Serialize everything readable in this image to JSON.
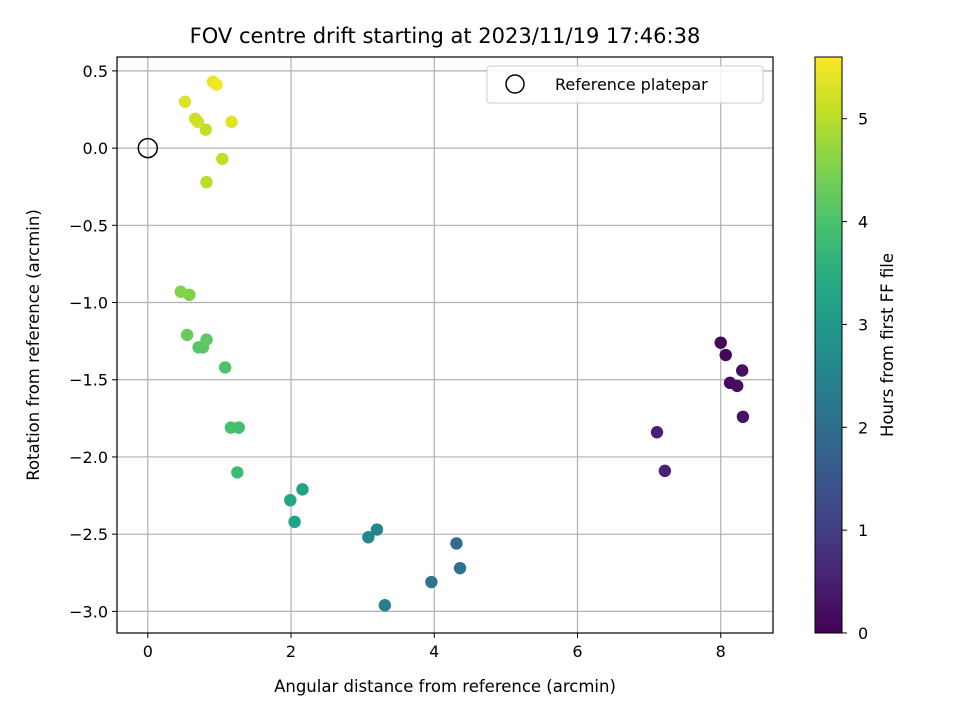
{
  "chart_data": {
    "type": "scatter",
    "title": "FOV centre drift starting at 2023/11/19 17:46:38",
    "xlabel": "Angular distance from reference (arcmin)",
    "ylabel": "Rotation from reference (arcmin)",
    "xlim": [
      -0.43,
      8.73
    ],
    "ylim": [
      -3.14,
      0.59
    ],
    "x_ticks": [
      0,
      2,
      4,
      6,
      8
    ],
    "y_ticks": [
      0.5,
      0.0,
      -0.5,
      -1.0,
      -1.5,
      -2.0,
      -2.5,
      -3.0
    ],
    "x_tick_labels": [
      "0",
      "2",
      "4",
      "6",
      "8"
    ],
    "y_tick_labels": [
      "0.5",
      "0.0",
      "−0.5",
      "−1.0",
      "−1.5",
      "−2.0",
      "−2.5",
      "−3.0"
    ],
    "grid": true,
    "legend": {
      "position": "top-right",
      "entries": [
        {
          "label": "Reference platepar",
          "marker": "open-circle"
        }
      ]
    },
    "reference_point": {
      "x": 0.0,
      "y": 0.0
    },
    "colorbar": {
      "label": "Hours from first FF file",
      "colormap": "viridis",
      "range": [
        0,
        5.6
      ],
      "ticks": [
        0,
        1,
        2,
        3,
        4,
        5
      ],
      "tick_labels": [
        "0",
        "1",
        "2",
        "3",
        "4",
        "5"
      ]
    },
    "points": [
      {
        "x": 8.0,
        "y": -1.26,
        "hours": 0.05
      },
      {
        "x": 8.07,
        "y": -1.34,
        "hours": 0.1
      },
      {
        "x": 8.13,
        "y": -1.52,
        "hours": 0.15
      },
      {
        "x": 8.23,
        "y": -1.54,
        "hours": 0.2
      },
      {
        "x": 8.3,
        "y": -1.44,
        "hours": 0.25
      },
      {
        "x": 8.31,
        "y": -1.74,
        "hours": 0.3
      },
      {
        "x": 7.11,
        "y": -1.84,
        "hours": 0.5
      },
      {
        "x": 7.22,
        "y": -2.09,
        "hours": 0.55
      },
      {
        "x": 4.31,
        "y": -2.56,
        "hours": 2.0
      },
      {
        "x": 4.36,
        "y": -2.72,
        "hours": 2.1
      },
      {
        "x": 3.96,
        "y": -2.81,
        "hours": 2.2
      },
      {
        "x": 3.31,
        "y": -2.96,
        "hours": 2.4
      },
      {
        "x": 3.2,
        "y": -2.47,
        "hours": 2.5
      },
      {
        "x": 3.08,
        "y": -2.52,
        "hours": 2.55
      },
      {
        "x": 2.16,
        "y": -2.21,
        "hours": 3.2
      },
      {
        "x": 2.05,
        "y": -2.42,
        "hours": 3.25
      },
      {
        "x": 1.99,
        "y": -2.28,
        "hours": 3.3
      },
      {
        "x": 1.25,
        "y": -2.1,
        "hours": 3.8
      },
      {
        "x": 1.27,
        "y": -1.81,
        "hours": 3.9
      },
      {
        "x": 1.16,
        "y": -1.81,
        "hours": 3.95
      },
      {
        "x": 1.08,
        "y": -1.42,
        "hours": 4.0
      },
      {
        "x": 0.71,
        "y": -1.29,
        "hours": 4.1
      },
      {
        "x": 0.77,
        "y": -1.29,
        "hours": 4.15
      },
      {
        "x": 0.82,
        "y": -1.24,
        "hours": 4.2
      },
      {
        "x": 0.55,
        "y": -1.21,
        "hours": 4.3
      },
      {
        "x": 0.58,
        "y": -0.95,
        "hours": 4.5
      },
      {
        "x": 0.46,
        "y": -0.93,
        "hours": 4.55
      },
      {
        "x": 0.82,
        "y": -0.22,
        "hours": 5.0
      },
      {
        "x": 1.04,
        "y": -0.07,
        "hours": 5.05
      },
      {
        "x": 0.81,
        "y": 0.12,
        "hours": 5.1
      },
      {
        "x": 0.66,
        "y": 0.19,
        "hours": 5.15
      },
      {
        "x": 0.7,
        "y": 0.17,
        "hours": 5.2
      },
      {
        "x": 0.52,
        "y": 0.3,
        "hours": 5.3
      },
      {
        "x": 1.17,
        "y": 0.17,
        "hours": 5.35
      },
      {
        "x": 0.91,
        "y": 0.43,
        "hours": 5.45
      },
      {
        "x": 0.96,
        "y": 0.41,
        "hours": 5.5
      }
    ]
  }
}
